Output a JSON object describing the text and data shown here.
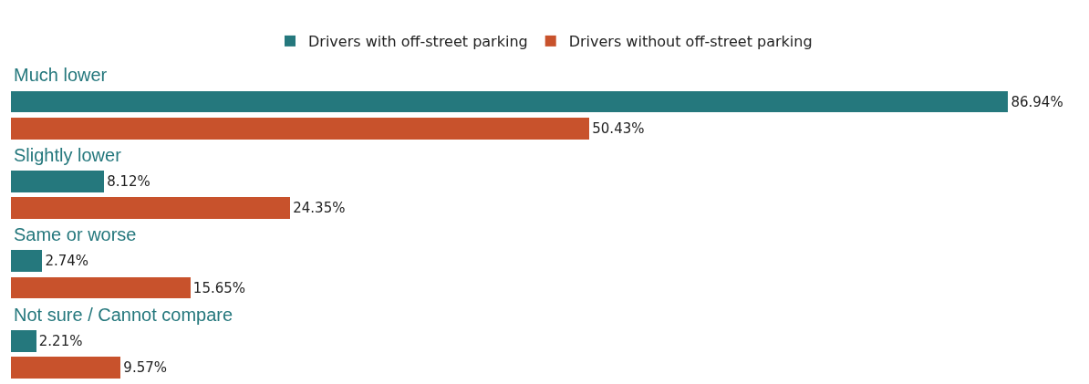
{
  "chart_data": {
    "type": "bar",
    "orientation": "horizontal",
    "categories": [
      "Much lower",
      "Slightly lower",
      "Same or worse",
      "Not sure / Cannot compare"
    ],
    "series": [
      {
        "name": "Drivers with off-street parking",
        "color": "#25787d",
        "values": [
          86.94,
          8.12,
          2.74,
          2.21
        ],
        "value_labels": [
          "86.94%",
          "8.12%",
          "2.74%",
          "2.21%"
        ]
      },
      {
        "name": "Drivers without off-street parking",
        "color": "#c8522c",
        "values": [
          50.43,
          24.35,
          15.65,
          9.57
        ],
        "value_labels": [
          "50.43%",
          "24.35%",
          "15.65%",
          "9.57%"
        ]
      }
    ],
    "legend": "top",
    "grid": false
  }
}
